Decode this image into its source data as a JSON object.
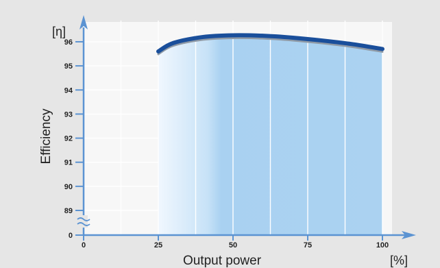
{
  "chart_data": {
    "type": "area",
    "xlabel": "Output power",
    "ylabel": "Efficiency",
    "x_unit": "[%]",
    "y_unit": "[η]",
    "x_ticks": [
      "0",
      "25",
      "50",
      "75",
      "100"
    ],
    "y_ticks": [
      "0",
      "89",
      "90",
      "91",
      "92",
      "93",
      "94",
      "95",
      "96"
    ],
    "axis_break": "y-axis between 0 and 89",
    "grid": true,
    "series": [
      {
        "x": [
          25,
          30,
          40,
          50,
          60,
          70,
          80,
          90,
          100
        ],
        "y": [
          95.6,
          95.95,
          96.2,
          96.27,
          96.25,
          96.17,
          96.05,
          95.9,
          95.7
        ]
      }
    ],
    "colors": {
      "line": "#1a4f9b",
      "fill_light": "#eef6fd",
      "fill_dark": "#a9d1f1",
      "axis": "#5b93d2",
      "grid": "#ffffff",
      "background": "#e6e6e6",
      "plot_bg": "#f7f7f7"
    }
  }
}
